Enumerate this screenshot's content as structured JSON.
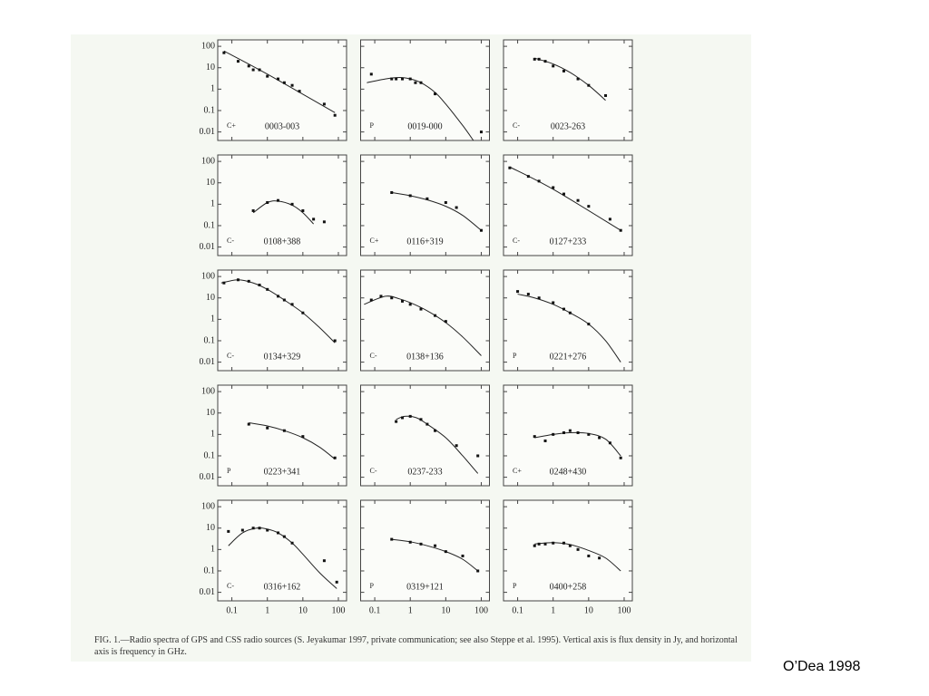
{
  "chart_data": [
    {
      "type": "scatter",
      "label": "0003-003",
      "class_label": "C+",
      "log_x": true,
      "log_y": true,
      "xlim": [
        0.04,
        170
      ],
      "ylim": [
        0.004,
        200
      ],
      "xticks": [
        0.1,
        1,
        10,
        100
      ],
      "yticks": [
        100,
        10,
        1,
        0.1,
        0.01
      ],
      "x": [
        0.06,
        0.15,
        0.3,
        0.4,
        0.6,
        1,
        2,
        3,
        5,
        8,
        40,
        80
      ],
      "values": [
        50,
        20,
        12,
        8,
        8,
        4,
        3,
        2,
        1.5,
        0.8,
        0.2,
        0.06
      ],
      "fit_x": [
        0.06,
        1,
        80
      ],
      "fit_values": [
        60,
        5,
        0.08
      ]
    },
    {
      "type": "scatter",
      "label": "0019-000",
      "class_label": "P",
      "log_x": true,
      "log_y": true,
      "xlim": [
        0.04,
        170
      ],
      "ylim": [
        0.004,
        200
      ],
      "xticks": [
        0.1,
        1,
        10,
        100
      ],
      "yticks": [
        100,
        10,
        1,
        0.1,
        0.01
      ],
      "x": [
        0.08,
        0.3,
        0.4,
        0.6,
        1,
        1.4,
        2,
        5,
        100
      ],
      "values": [
        5,
        3,
        3,
        3,
        3,
        2,
        2,
        0.6,
        0.01
      ],
      "fit_x": [
        0.06,
        0.2,
        0.5,
        1,
        2,
        5,
        10,
        30,
        60
      ],
      "fit_values": [
        2,
        3,
        3.5,
        3,
        2,
        0.7,
        0.2,
        0.02,
        0.004
      ]
    },
    {
      "type": "scatter",
      "label": "0023-263",
      "class_label": "C-",
      "log_x": true,
      "log_y": true,
      "xlim": [
        0.04,
        170
      ],
      "ylim": [
        0.004,
        200
      ],
      "xticks": [
        0.1,
        1,
        10,
        100
      ],
      "yticks": [
        100,
        10,
        1,
        0.1,
        0.01
      ],
      "x": [
        0.3,
        0.4,
        0.6,
        1,
        2,
        5,
        10,
        30
      ],
      "values": [
        25,
        25,
        20,
        12,
        7,
        3,
        1.5,
        0.5
      ],
      "fit_x": [
        0.3,
        1,
        3,
        10,
        30
      ],
      "fit_values": [
        28,
        15,
        6,
        1.5,
        0.3
      ]
    },
    {
      "type": "scatter",
      "label": "0108+388",
      "class_label": "C-",
      "log_x": true,
      "log_y": true,
      "xlim": [
        0.04,
        170
      ],
      "ylim": [
        0.004,
        200
      ],
      "xticks": [
        0.1,
        1,
        10,
        100
      ],
      "yticks": [
        100,
        10,
        1,
        0.1,
        0.01
      ],
      "x": [
        0.4,
        1,
        2,
        5,
        10,
        20,
        40
      ],
      "values": [
        0.5,
        1.2,
        1.5,
        1,
        0.5,
        0.2,
        0.15
      ],
      "fit_x": [
        0.4,
        1,
        2,
        5,
        10,
        20
      ],
      "fit_values": [
        0.4,
        1.2,
        1.4,
        0.9,
        0.4,
        0.12
      ]
    },
    {
      "type": "scatter",
      "label": "0116+319",
      "class_label": "C+",
      "log_x": true,
      "log_y": true,
      "xlim": [
        0.04,
        170
      ],
      "ylim": [
        0.004,
        200
      ],
      "xticks": [
        0.1,
        1,
        10,
        100
      ],
      "yticks": [
        100,
        10,
        1,
        0.1,
        0.01
      ],
      "x": [
        0.3,
        1,
        3,
        10,
        20,
        100
      ],
      "values": [
        3.5,
        2.5,
        1.8,
        1.2,
        0.7,
        0.06
      ],
      "fit_x": [
        0.3,
        1,
        3,
        10,
        30,
        100
      ],
      "fit_values": [
        3.5,
        2.5,
        1.6,
        0.8,
        0.3,
        0.06
      ]
    },
    {
      "type": "scatter",
      "label": "0127+233",
      "class_label": "C-",
      "log_x": true,
      "log_y": true,
      "xlim": [
        0.04,
        170
      ],
      "ylim": [
        0.004,
        200
      ],
      "xticks": [
        0.1,
        1,
        10,
        100
      ],
      "yticks": [
        100,
        10,
        1,
        0.1,
        0.01
      ],
      "x": [
        0.06,
        0.2,
        0.4,
        1,
        2,
        5,
        10,
        40,
        80
      ],
      "values": [
        50,
        20,
        12,
        6,
        3,
        1.5,
        0.8,
        0.2,
        0.06
      ],
      "fit_x": [
        0.06,
        1,
        80
      ],
      "fit_values": [
        55,
        5,
        0.06
      ]
    },
    {
      "type": "scatter",
      "label": "0134+329",
      "class_label": "C-",
      "log_x": true,
      "log_y": true,
      "xlim": [
        0.04,
        170
      ],
      "ylim": [
        0.004,
        200
      ],
      "xticks": [
        0.1,
        1,
        10,
        100
      ],
      "yticks": [
        100,
        10,
        1,
        0.1,
        0.01
      ],
      "x": [
        0.06,
        0.15,
        0.3,
        0.6,
        1,
        2,
        3,
        5,
        10,
        80
      ],
      "values": [
        50,
        70,
        60,
        40,
        25,
        12,
        8,
        5,
        2,
        0.1
      ],
      "fit_x": [
        0.05,
        0.15,
        0.4,
        1,
        3,
        10,
        30,
        80
      ],
      "fit_values": [
        50,
        70,
        50,
        25,
        8,
        2,
        0.4,
        0.08
      ]
    },
    {
      "type": "scatter",
      "label": "0138+136",
      "class_label": "C-",
      "log_x": true,
      "log_y": true,
      "xlim": [
        0.04,
        170
      ],
      "ylim": [
        0.004,
        200
      ],
      "xticks": [
        0.1,
        1,
        10,
        100
      ],
      "yticks": [
        100,
        10,
        1,
        0.1,
        0.01
      ],
      "x": [
        0.08,
        0.15,
        0.3,
        0.6,
        1,
        2,
        5,
        10
      ],
      "values": [
        8,
        12,
        10,
        7,
        5,
        3,
        1.5,
        0.8
      ],
      "fit_x": [
        0.05,
        0.2,
        0.5,
        1,
        3,
        10,
        30,
        100
      ],
      "fit_values": [
        5,
        12,
        9,
        6,
        2.5,
        0.7,
        0.15,
        0.02
      ]
    },
    {
      "type": "scatter",
      "label": "0221+276",
      "class_label": "P",
      "log_x": true,
      "log_y": true,
      "xlim": [
        0.04,
        170
      ],
      "ylim": [
        0.004,
        200
      ],
      "xticks": [
        0.1,
        1,
        10,
        100
      ],
      "yticks": [
        100,
        10,
        1,
        0.1,
        0.01
      ],
      "x": [
        0.1,
        0.2,
        0.4,
        1,
        2,
        3,
        10
      ],
      "values": [
        20,
        15,
        10,
        6,
        3,
        2,
        0.6
      ],
      "fit_x": [
        0.1,
        0.3,
        1,
        3,
        10,
        30,
        80
      ],
      "fit_values": [
        15,
        10,
        5,
        2,
        0.6,
        0.1,
        0.01
      ]
    },
    {
      "type": "scatter",
      "label": "0223+341",
      "class_label": "P",
      "log_x": true,
      "log_y": true,
      "xlim": [
        0.04,
        170
      ],
      "ylim": [
        0.004,
        200
      ],
      "xticks": [
        0.1,
        1,
        10,
        100
      ],
      "yticks": [
        100,
        10,
        1,
        0.1,
        0.01
      ],
      "x": [
        0.3,
        1,
        3,
        10,
        80
      ],
      "values": [
        3,
        2,
        1.5,
        0.8,
        0.08
      ],
      "fit_x": [
        0.3,
        1,
        3,
        10,
        30,
        80
      ],
      "fit_values": [
        3.5,
        2.5,
        1.5,
        0.7,
        0.25,
        0.07
      ]
    },
    {
      "type": "scatter",
      "label": "0237-233",
      "class_label": "C-",
      "log_x": true,
      "log_y": true,
      "xlim": [
        0.04,
        170
      ],
      "ylim": [
        0.004,
        200
      ],
      "xticks": [
        0.1,
        1,
        10,
        100
      ],
      "yticks": [
        100,
        10,
        1,
        0.1,
        0.01
      ],
      "x": [
        0.4,
        0.6,
        1,
        2,
        3,
        5,
        20,
        80
      ],
      "values": [
        4,
        6,
        7,
        5,
        3,
        1.5,
        0.3,
        0.1
      ],
      "fit_x": [
        0.4,
        0.7,
        1.5,
        3,
        10,
        30,
        80
      ],
      "fit_values": [
        5,
        7,
        6,
        3,
        0.7,
        0.1,
        0.015
      ]
    },
    {
      "type": "scatter",
      "label": "0248+430",
      "class_label": "C+",
      "log_x": true,
      "log_y": true,
      "xlim": [
        0.04,
        170
      ],
      "ylim": [
        0.004,
        200
      ],
      "xticks": [
        0.1,
        1,
        10,
        100
      ],
      "yticks": [
        100,
        10,
        1,
        0.1,
        0.01
      ],
      "x": [
        0.3,
        0.6,
        1,
        2,
        3,
        5,
        10,
        20,
        40,
        80
      ],
      "values": [
        0.8,
        0.5,
        1,
        1.2,
        1.5,
        1.2,
        1,
        0.7,
        0.4,
        0.08
      ],
      "fit_x": [
        0.3,
        1,
        3,
        10,
        30,
        80
      ],
      "fit_values": [
        0.7,
        1,
        1.2,
        1.1,
        0.6,
        0.1
      ]
    },
    {
      "type": "scatter",
      "label": "0316+162",
      "class_label": "C-",
      "log_x": true,
      "log_y": true,
      "xlim": [
        0.04,
        170
      ],
      "ylim": [
        0.004,
        200
      ],
      "xticks": [
        0.1,
        1,
        10,
        100
      ],
      "yticks": [
        100,
        10,
        1,
        0.1,
        0.01
      ],
      "x": [
        0.08,
        0.2,
        0.4,
        0.6,
        1,
        2,
        3,
        5,
        40,
        90
      ],
      "values": [
        7,
        8,
        10,
        10,
        8,
        6,
        4,
        2,
        0.3,
        0.03
      ],
      "fit_x": [
        0.08,
        0.2,
        0.5,
        1,
        2,
        5,
        10,
        30,
        90
      ],
      "fit_values": [
        1.5,
        6,
        10,
        9,
        6,
        2,
        0.6,
        0.08,
        0.015
      ]
    },
    {
      "type": "scatter",
      "label": "0319+121",
      "class_label": "P",
      "log_x": true,
      "log_y": true,
      "xlim": [
        0.04,
        170
      ],
      "ylim": [
        0.004,
        200
      ],
      "xticks": [
        0.1,
        1,
        10,
        100
      ],
      "yticks": [
        100,
        10,
        1,
        0.1,
        0.01
      ],
      "x": [
        0.3,
        1,
        2,
        5,
        10,
        30,
        80
      ],
      "values": [
        3,
        2.2,
        1.8,
        1.5,
        0.8,
        0.5,
        0.1
      ],
      "fit_x": [
        0.3,
        1,
        3,
        10,
        30,
        80
      ],
      "fit_values": [
        3,
        2.3,
        1.5,
        0.8,
        0.35,
        0.1
      ]
    },
    {
      "type": "scatter",
      "label": "0400+258",
      "class_label": "P",
      "log_x": true,
      "log_y": true,
      "xlim": [
        0.04,
        170
      ],
      "ylim": [
        0.004,
        200
      ],
      "xticks": [
        0.1,
        1,
        10,
        100
      ],
      "yticks": [
        100,
        10,
        1,
        0.1,
        0.01
      ],
      "x": [
        0.3,
        0.4,
        0.6,
        1,
        2,
        3,
        5,
        10,
        20
      ],
      "values": [
        1.5,
        1.8,
        1.8,
        2,
        2,
        1.5,
        1,
        0.5,
        0.4
      ],
      "fit_x": [
        0.3,
        1,
        3,
        10,
        30,
        80
      ],
      "fit_values": [
        1.8,
        2.1,
        1.7,
        0.9,
        0.4,
        0.1
      ]
    }
  ],
  "caption": "FIG. 1.—Radio spectra of GPS and CSS radio sources (S. Jeyakumar 1997, private communication; see also Steppe et al. 1995). Vertical axis is flux density in Jy, and horizontal axis is frequency in GHz.",
  "credit": "O’Dea 1998"
}
